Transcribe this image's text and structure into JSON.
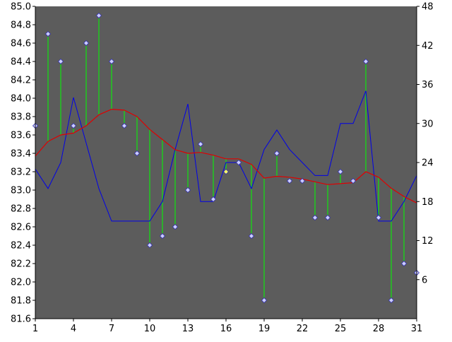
{
  "chart_data": {
    "type": "line",
    "x": [
      1,
      2,
      3,
      4,
      5,
      6,
      7,
      8,
      9,
      10,
      11,
      12,
      13,
      14,
      15,
      16,
      17,
      18,
      19,
      20,
      21,
      22,
      23,
      24,
      25,
      26,
      27,
      28,
      29,
      30,
      31
    ],
    "x_ticks": [
      "1",
      "4",
      "7",
      "10",
      "13",
      "16",
      "19",
      "22",
      "25",
      "28",
      "31"
    ],
    "ylim_left": [
      81.6,
      85.0
    ],
    "yticks_left": [
      "81.6",
      "81.8",
      "82.0",
      "82.2",
      "82.4",
      "82.6",
      "82.8",
      "83.0",
      "83.2",
      "83.4",
      "83.6",
      "83.8",
      "84.0",
      "84.2",
      "84.4",
      "84.6",
      "84.8",
      "85.0"
    ],
    "ylim_right": [
      0,
      48
    ],
    "yticks_right": [
      "6",
      "12",
      "18",
      "24",
      "30",
      "36",
      "42",
      "48"
    ],
    "grid": false,
    "legend": "none",
    "series": [
      {
        "kind": "points-with-stems-to-moving-average",
        "axis": "left",
        "values": [
          83.7,
          84.7,
          84.4,
          83.7,
          84.6,
          84.9,
          84.4,
          83.7,
          83.4,
          82.4,
          82.5,
          82.6,
          83.0,
          83.5,
          82.9,
          83.2,
          83.3,
          82.5,
          81.8,
          83.4,
          83.1,
          83.1,
          82.7,
          82.7,
          83.2,
          83.1,
          84.4,
          82.7,
          81.8,
          82.2,
          82.1
        ],
        "highlight_index": 15
      },
      {
        "kind": "moving-average-line",
        "axis": "left",
        "values": [
          83.37,
          83.53,
          83.6,
          83.62,
          83.7,
          83.82,
          83.88,
          83.87,
          83.8,
          83.66,
          83.55,
          83.44,
          83.4,
          83.41,
          83.38,
          83.34,
          83.34,
          83.28,
          83.13,
          83.15,
          83.14,
          83.12,
          83.09,
          83.06,
          83.07,
          83.08,
          83.2,
          83.14,
          83.02,
          82.93,
          82.86
        ]
      },
      {
        "kind": "line",
        "axis": "right",
        "values": [
          23,
          20,
          24,
          34,
          27,
          20,
          15,
          15,
          15,
          15,
          18,
          26,
          33,
          18,
          18,
          24,
          24,
          20,
          26,
          29,
          26,
          24,
          22,
          22,
          30,
          30,
          35,
          15,
          15,
          18,
          22
        ]
      }
    ]
  },
  "colors": {
    "plot_background": "#5c5c5c",
    "page_background": "#ffffff",
    "moving_average": "#e00000",
    "secondary_line": "#0000e8",
    "stems": "#00ff00",
    "marker_fill": "#ccccff",
    "marker_highlight": "#ffff66",
    "marker_stroke": "#3333aa",
    "axis": "#000000"
  }
}
